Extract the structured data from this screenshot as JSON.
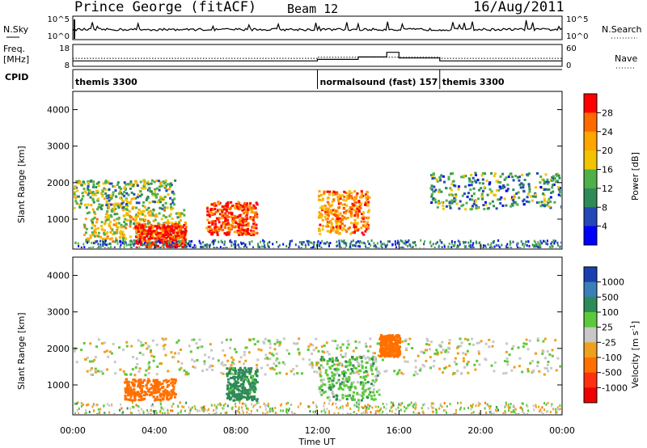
{
  "header": {
    "station": "Prince George (fitACF)",
    "beam": "Beam 12",
    "date": "16/Aug/2011"
  },
  "noise_panel": {
    "left_label": "N.Sky",
    "left_ticks": [
      "10^5",
      "10^0"
    ],
    "right_ticks": [
      "10^5",
      "10^0"
    ],
    "right_label": "N.Search"
  },
  "freq_panel": {
    "left_label_1": "Freq.",
    "left_label_2": "[MHz]",
    "left_ticks": [
      "18",
      "8"
    ],
    "right_ticks": [
      "60",
      "0"
    ],
    "right_label": "Nave"
  },
  "cpid": {
    "label": "CPID",
    "segments": [
      {
        "name": "themis 3300",
        "start_hour": 0,
        "end_hour": 12
      },
      {
        "name": "normalsound (fast) 157",
        "start_hour": 12,
        "end_hour": 18
      },
      {
        "name": "themis 3300",
        "start_hour": 18,
        "end_hour": 24
      }
    ]
  },
  "power_panel": {
    "ylabel": "Slant Range [km]",
    "colorbar_label": "Power [dB]",
    "colorbar_ticks": [
      "28",
      "24",
      "20",
      "16",
      "12",
      "8",
      "4"
    ],
    "colors": [
      "#ff0000",
      "#ff6a00",
      "#ffa500",
      "#f2c300",
      "#4fb049",
      "#2e8b57",
      "#2448b8",
      "#0000ff"
    ]
  },
  "velocity_panel": {
    "ylabel": "Slant Range [km]",
    "colorbar_label": "Velocity [m s",
    "colorbar_sup": "-1",
    "colorbar_label_end": "]",
    "colorbar_ticks": [
      "1000",
      "500",
      "100",
      "25",
      "-25",
      "-100",
      "-500",
      "-1000"
    ],
    "colors": [
      "#1a3fb0",
      "#3a7fb8",
      "#2e8b57",
      "#5cc93a",
      "#c8c8c8",
      "#f0a020",
      "#ff7000",
      "#ff3010",
      "#ee0000"
    ]
  },
  "chart_data": {
    "type": "heatmap",
    "x": {
      "label": "Time UT",
      "ticks": [
        "00:00",
        "04:00",
        "08:00",
        "12:00",
        "16:00",
        "20:00",
        "00:00"
      ],
      "range_hours": [
        0,
        24
      ]
    },
    "y": {
      "label": "Slant Range [km]",
      "ticks": [
        1000,
        2000,
        3000,
        4000
      ],
      "range_km": [
        180,
        4500
      ]
    },
    "freq_mhz_range": [
      8,
      18
    ],
    "nave_range": [
      0,
      60
    ],
    "power_db_range": [
      0,
      30
    ],
    "velocity_range": [
      -1000,
      1000
    ],
    "power_features": [
      {
        "t0": 0.0,
        "t1": 5.0,
        "r0": 1300,
        "r1": 2100,
        "level_db": 12
      },
      {
        "t0": 0.5,
        "t1": 5.5,
        "r0": 400,
        "r1": 1300,
        "level_db": 16
      },
      {
        "t0": 3.0,
        "t1": 5.5,
        "r0": 250,
        "r1": 900,
        "level_db": 28
      },
      {
        "t0": 6.5,
        "t1": 9.0,
        "r0": 600,
        "r1": 1500,
        "level_db": 26
      },
      {
        "t0": 12.0,
        "t1": 14.5,
        "r0": 600,
        "r1": 1800,
        "level_db": 22
      },
      {
        "t0": 17.5,
        "t1": 24.0,
        "r0": 1300,
        "r1": 2300,
        "level_db": 10
      }
    ],
    "velocity_features": [
      {
        "t0": 0.0,
        "t1": 24.0,
        "r0": 1300,
        "r1": 2300,
        "v": 0
      },
      {
        "t0": 2.5,
        "t1": 5.0,
        "r0": 600,
        "r1": 1200,
        "v": -300
      },
      {
        "t0": 7.5,
        "t1": 9.0,
        "r0": 600,
        "r1": 1500,
        "v": 150
      },
      {
        "t0": 12.0,
        "t1": 15.0,
        "r0": 600,
        "r1": 1800,
        "v": 60
      },
      {
        "t0": 15.0,
        "t1": 16.0,
        "r0": 1800,
        "r1": 2400,
        "v": -250
      }
    ]
  }
}
